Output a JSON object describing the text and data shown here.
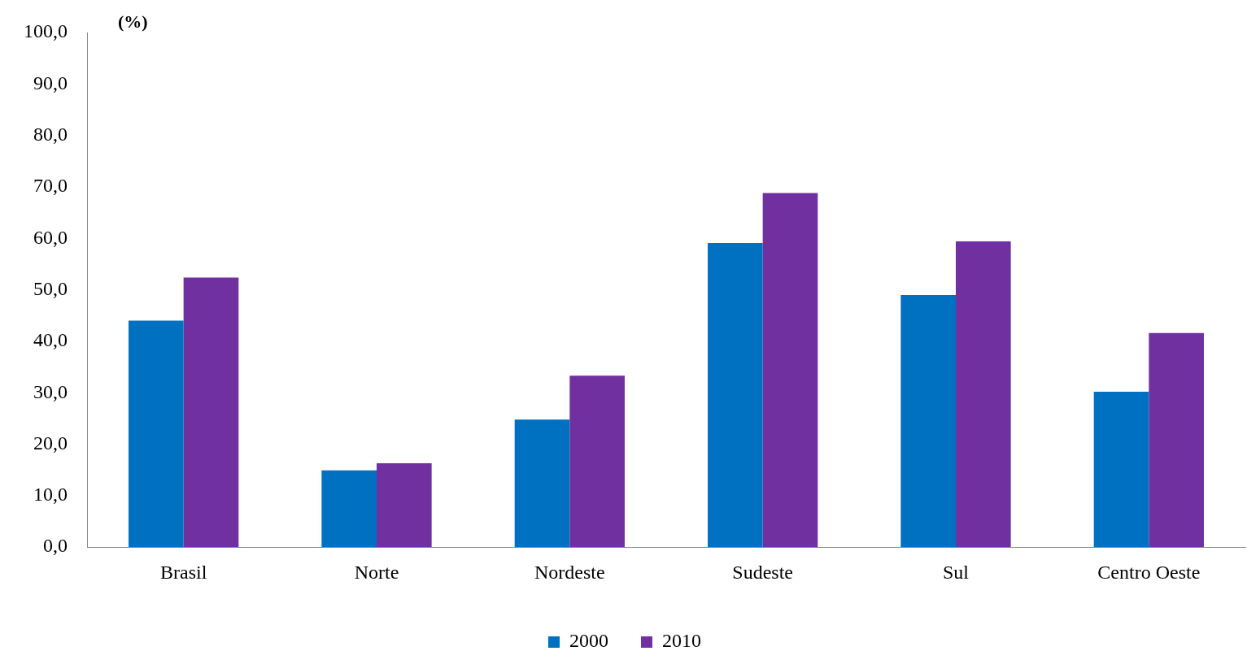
{
  "chart_data": {
    "type": "bar",
    "ylabel": "(%)",
    "categories": [
      "Brasil",
      "Norte",
      "Nordeste",
      "Sudeste",
      "Sul",
      "Centro Oeste"
    ],
    "series": [
      {
        "name": "2000",
        "color": "#0070c0",
        "values": [
          44.0,
          14.9,
          24.8,
          59.1,
          49.0,
          30.2
        ]
      },
      {
        "name": "2010",
        "color": "#7030a0",
        "values": [
          52.4,
          16.3,
          33.3,
          68.8,
          59.4,
          41.6
        ]
      }
    ],
    "ylim": [
      0,
      100
    ],
    "yticks": [
      {
        "value": 0,
        "label": "0,0"
      },
      {
        "value": 10,
        "label": "10,0"
      },
      {
        "value": 20,
        "label": "20,0"
      },
      {
        "value": 30,
        "label": "30,0"
      },
      {
        "value": 40,
        "label": "40,0"
      },
      {
        "value": 50,
        "label": "50,0"
      },
      {
        "value": 60,
        "label": "60,0"
      },
      {
        "value": 70,
        "label": "70,0"
      },
      {
        "value": 80,
        "label": "80,0"
      },
      {
        "value": 90,
        "label": "90,0"
      },
      {
        "value": 100,
        "label": "100,0"
      }
    ],
    "grid": false,
    "legend": "bottom"
  }
}
